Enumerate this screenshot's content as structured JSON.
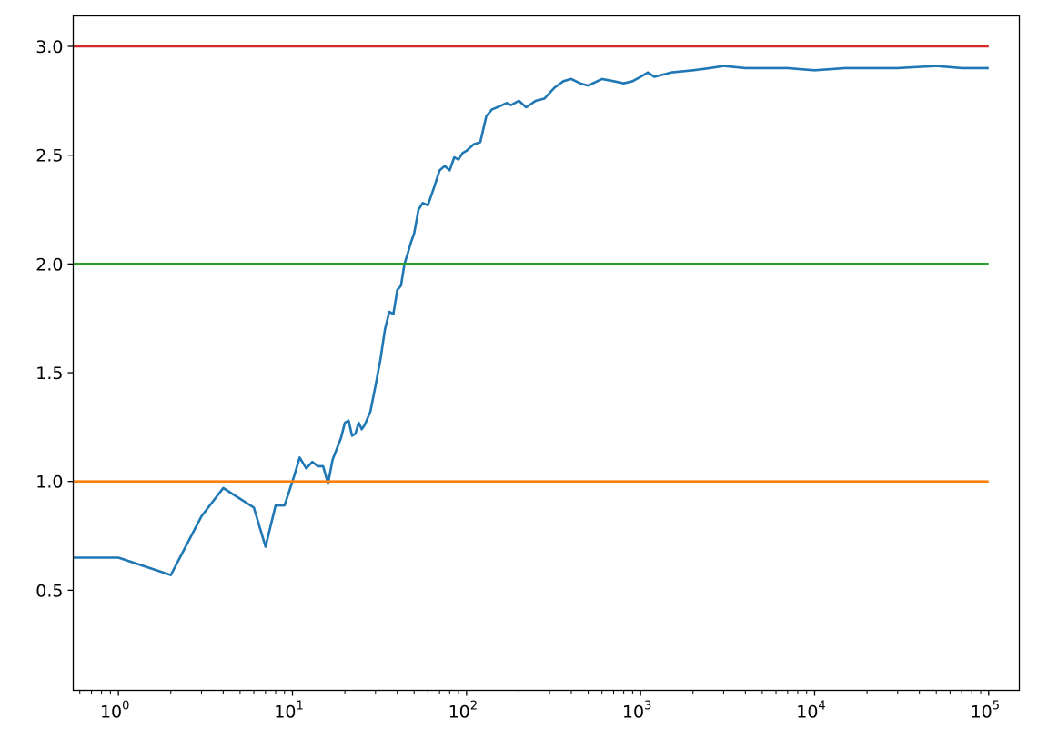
{
  "chart_data": {
    "type": "line",
    "title": "",
    "xlabel": "",
    "ylabel": "",
    "x_scale": "log",
    "xlim": [
      0.55,
      150000
    ],
    "ylim": [
      0.04,
      3.14
    ],
    "grid": false,
    "legend": "none",
    "x_ticks": [
      {
        "value": 1,
        "base": "10",
        "exp": "0"
      },
      {
        "value": 10,
        "base": "10",
        "exp": "1"
      },
      {
        "value": 100,
        "base": "10",
        "exp": "2"
      },
      {
        "value": 1000,
        "base": "10",
        "exp": "3"
      },
      {
        "value": 10000,
        "base": "10",
        "exp": "4"
      },
      {
        "value": 100000,
        "base": "10",
        "exp": "5"
      }
    ],
    "y_ticks": [
      {
        "value": 0.5,
        "label": "0.5"
      },
      {
        "value": 1.0,
        "label": "1.0"
      },
      {
        "value": 1.5,
        "label": "1.5"
      },
      {
        "value": 2.0,
        "label": "2.0"
      },
      {
        "value": 2.5,
        "label": "2.5"
      },
      {
        "value": 3.0,
        "label": "3.0"
      }
    ],
    "series": [
      {
        "color": "#1f77b4",
        "x": [
          0.55,
          1,
          2,
          3,
          4,
          6,
          7,
          8,
          9,
          10,
          11,
          12,
          13,
          14,
          15,
          16,
          17,
          19,
          20,
          21,
          22,
          23,
          24,
          25,
          26,
          28,
          30,
          32,
          34,
          36,
          38,
          40,
          42,
          44,
          46,
          48,
          50,
          53,
          56,
          60,
          65,
          70,
          75,
          80,
          85,
          90,
          95,
          100,
          110,
          120,
          130,
          140,
          150,
          160,
          170,
          180,
          200,
          220,
          250,
          280,
          320,
          360,
          400,
          450,
          500,
          600,
          700,
          800,
          900,
          1000,
          1100,
          1200,
          1500,
          2000,
          2500,
          3000,
          4000,
          5000,
          7000,
          10000,
          15000,
          20000,
          30000,
          50000,
          70000,
          100000
        ],
        "y": [
          0.65,
          0.65,
          0.57,
          0.84,
          0.97,
          0.88,
          0.7,
          0.89,
          0.89,
          1.0,
          1.11,
          1.06,
          1.09,
          1.07,
          1.07,
          0.99,
          1.1,
          1.2,
          1.27,
          1.28,
          1.21,
          1.22,
          1.27,
          1.24,
          1.26,
          1.32,
          1.44,
          1.56,
          1.7,
          1.78,
          1.77,
          1.88,
          1.9,
          2.0,
          2.05,
          2.1,
          2.14,
          2.25,
          2.28,
          2.27,
          2.35,
          2.43,
          2.45,
          2.43,
          2.49,
          2.48,
          2.51,
          2.52,
          2.55,
          2.56,
          2.68,
          2.71,
          2.72,
          2.73,
          2.74,
          2.73,
          2.75,
          2.72,
          2.75,
          2.76,
          2.81,
          2.84,
          2.85,
          2.83,
          2.82,
          2.85,
          2.84,
          2.83,
          2.84,
          2.86,
          2.88,
          2.86,
          2.88,
          2.89,
          2.9,
          2.91,
          2.9,
          2.9,
          2.9,
          2.89,
          2.9,
          2.9,
          2.9,
          2.91,
          2.9,
          2.9
        ]
      },
      {
        "color": "#ff7f0e",
        "x": [
          0.55,
          100000
        ],
        "y": [
          1.0,
          1.0
        ]
      },
      {
        "color": "#2ca02c",
        "x": [
          0.55,
          100000
        ],
        "y": [
          2.0,
          2.0
        ]
      },
      {
        "color": "#d62728",
        "x": [
          0.55,
          100000
        ],
        "y": [
          3.0,
          3.0
        ]
      }
    ]
  }
}
